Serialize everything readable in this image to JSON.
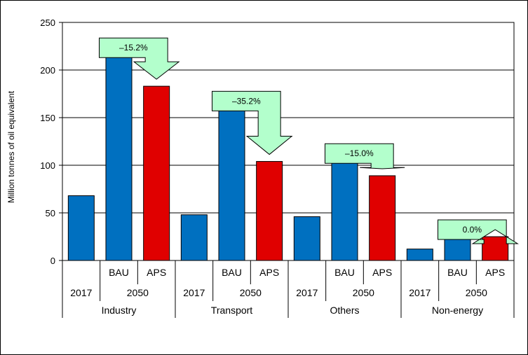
{
  "chart_data": {
    "type": "bar",
    "title": "",
    "ylabel": "Million tonnes of oil equivalent",
    "xlabel": "",
    "ylim": [
      0,
      250
    ],
    "yticks": [
      0,
      50,
      100,
      150,
      200,
      250
    ],
    "grid": true,
    "colors": {
      "2017": "#0070c0",
      "BAU": "#0070c0",
      "APS": "#e00000",
      "arrow_fill": "#b3ffcc"
    },
    "groups": [
      {
        "name": "Industry",
        "year_a": "2017",
        "year_b": "2050",
        "bars": [
          {
            "label": "",
            "scenario": "2017",
            "value": 68
          },
          {
            "label": "BAU",
            "scenario": "BAU",
            "value": 216
          },
          {
            "label": "APS",
            "scenario": "APS",
            "value": 183
          }
        ],
        "change": "–15.2%"
      },
      {
        "name": "Transport",
        "year_a": "2017",
        "year_b": "2050",
        "bars": [
          {
            "label": "",
            "scenario": "2017",
            "value": 48
          },
          {
            "label": "BAU",
            "scenario": "BAU",
            "value": 160
          },
          {
            "label": "APS",
            "scenario": "APS",
            "value": 104
          }
        ],
        "change": "–35.2%"
      },
      {
        "name": "Others",
        "year_a": "2017",
        "year_b": "2050",
        "bars": [
          {
            "label": "",
            "scenario": "2017",
            "value": 46
          },
          {
            "label": "BAU",
            "scenario": "BAU",
            "value": 105
          },
          {
            "label": "APS",
            "scenario": "APS",
            "value": 89
          }
        ],
        "change": "–15.0%"
      },
      {
        "name": "Non-energy",
        "year_a": "2017",
        "year_b": "2050",
        "bars": [
          {
            "label": "",
            "scenario": "2017",
            "value": 12
          },
          {
            "label": "BAU",
            "scenario": "BAU",
            "value": 25
          },
          {
            "label": "APS",
            "scenario": "APS",
            "value": 25
          }
        ],
        "change": "0.0%"
      }
    ]
  }
}
